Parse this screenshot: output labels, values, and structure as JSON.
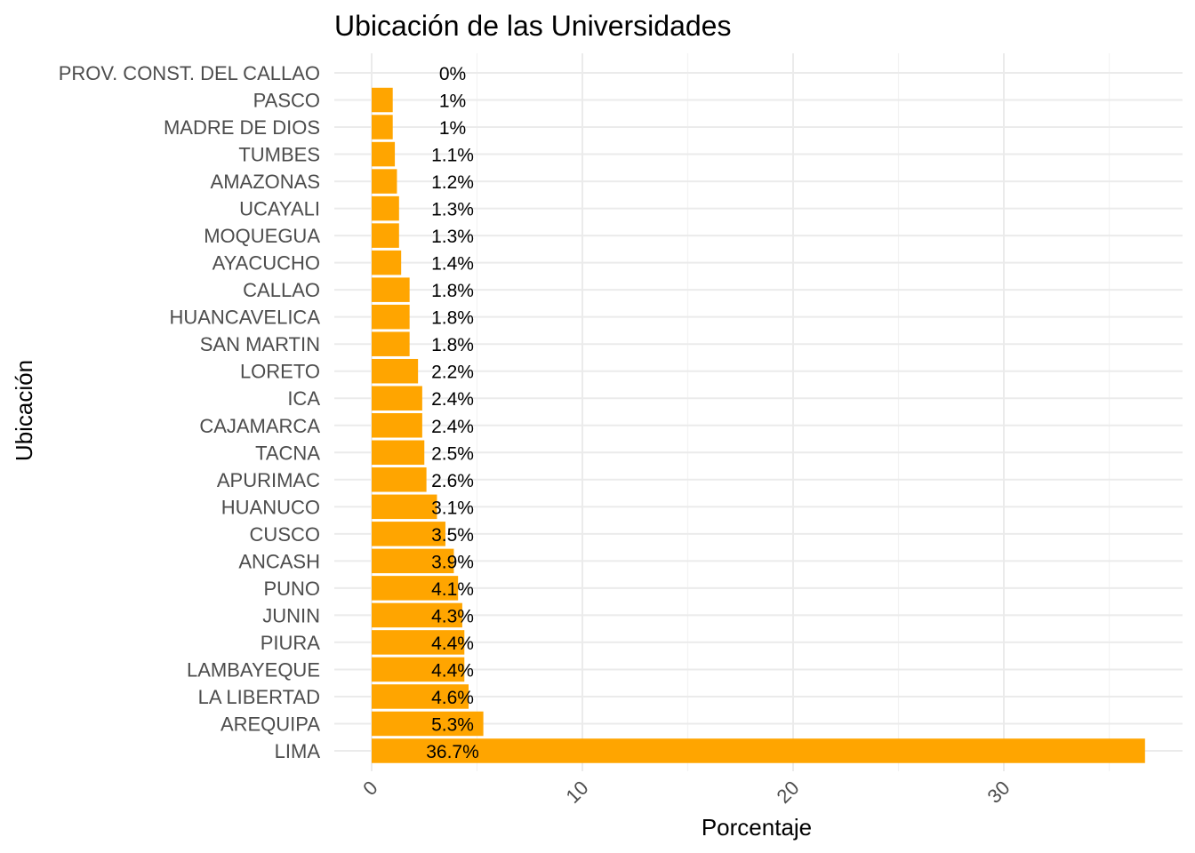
{
  "chart_data": {
    "type": "bar",
    "orientation": "horizontal",
    "title": "Ubicación de las Universidades",
    "xlabel": "Porcentaje",
    "ylabel": "Ubicación",
    "categories": [
      "PROV. CONST. DEL CALLAO",
      "PASCO",
      "MADRE DE DIOS",
      "TUMBES",
      "AMAZONAS",
      "UCAYALI",
      "MOQUEGUA",
      "AYACUCHO",
      "CALLAO",
      "HUANCAVELICA",
      "SAN MARTIN",
      "LORETO",
      "ICA",
      "CAJAMARCA",
      "TACNA",
      "APURIMAC",
      "HUANUCO",
      "CUSCO",
      "ANCASH",
      "PUNO",
      "JUNIN",
      "PIURA",
      "LAMBAYEQUE",
      "LA LIBERTAD",
      "AREQUIPA",
      "LIMA"
    ],
    "values": [
      0,
      1,
      1,
      1.1,
      1.2,
      1.3,
      1.3,
      1.4,
      1.8,
      1.8,
      1.8,
      2.2,
      2.4,
      2.4,
      2.5,
      2.6,
      3.1,
      3.5,
      3.9,
      4.1,
      4.3,
      4.4,
      4.4,
      4.6,
      5.3,
      36.7
    ],
    "data_labels": [
      "0%",
      "1%",
      "1%",
      "1.1%",
      "1.2%",
      "1.3%",
      "1.3%",
      "1.4%",
      "1.8%",
      "1.8%",
      "1.8%",
      "2.2%",
      "2.4%",
      "2.4%",
      "2.5%",
      "2.6%",
      "3.1%",
      "3.5%",
      "3.9%",
      "4.1%",
      "4.3%",
      "4.4%",
      "4.4%",
      "4.6%",
      "5.3%",
      "36.7%"
    ],
    "x_ticks": [
      0,
      10,
      20,
      30
    ],
    "xlim": [
      -0.5,
      38
    ],
    "grid": true,
    "legend": "none",
    "bar_color": "#FFA500"
  }
}
